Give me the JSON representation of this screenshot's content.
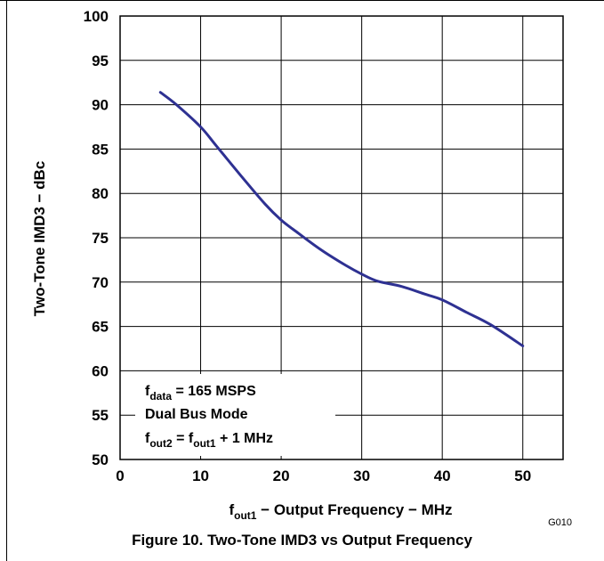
{
  "figure_code": "G010",
  "caption": "Figure 10. Two-Tone IMD3 vs Output Frequency",
  "chart_data": {
    "type": "line",
    "title": "",
    "xlabel": {
      "main": "f",
      "sub": "out1",
      "rest": " − Output Frequency − MHz"
    },
    "ylabel": "Two-Tone IMD3 − dBc",
    "xlim": [
      0,
      55
    ],
    "ylim": [
      50,
      100
    ],
    "xticks": [
      0,
      10,
      20,
      30,
      40,
      50
    ],
    "yticks": [
      50,
      55,
      60,
      65,
      70,
      75,
      80,
      85,
      90,
      95,
      100
    ],
    "grid": true,
    "line_color": "#2e3192",
    "annotation": {
      "line1": {
        "main": "f",
        "sub": "data",
        "rest": " = 165 MSPS"
      },
      "line2": "Dual Bus Mode",
      "line3": {
        "p1": "f",
        "s1": "out2",
        "p2": " = f",
        "s2": "out1",
        "p3": " + 1 MHz"
      }
    },
    "series": [
      {
        "x": [
          5,
          7,
          10,
          12,
          15,
          18,
          20,
          22,
          25,
          28,
          30,
          32,
          35,
          38,
          40,
          43,
          46,
          50
        ],
        "values": [
          91.4,
          90.0,
          87.5,
          85.3,
          82.0,
          78.8,
          77.0,
          75.6,
          73.6,
          71.9,
          70.9,
          70.1,
          69.5,
          68.6,
          68.0,
          66.6,
          65.2,
          62.8
        ]
      }
    ]
  }
}
